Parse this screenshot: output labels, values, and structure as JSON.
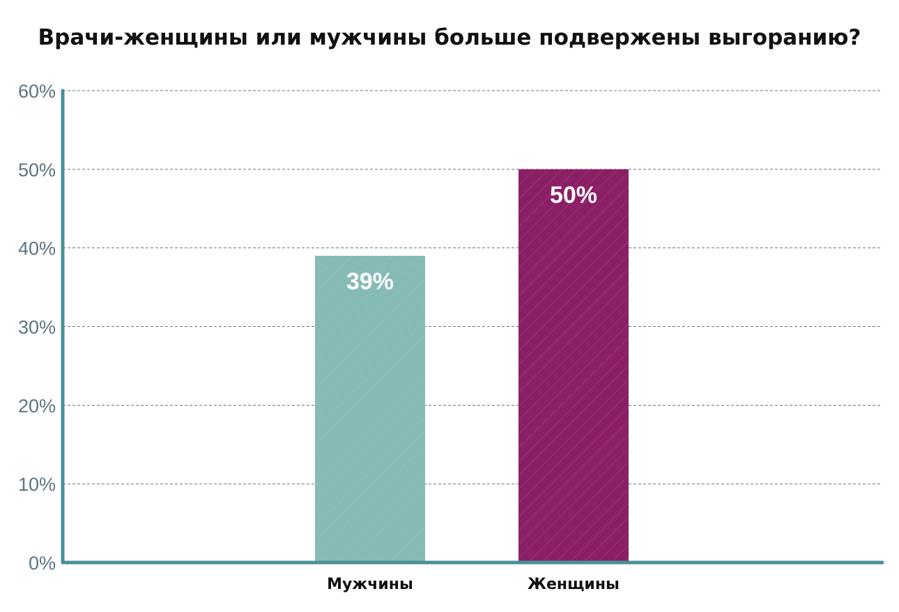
{
  "chart_data": {
    "type": "bar",
    "title": "Врачи-женщины или мужчины больше подвержены выгоранию?",
    "xlabel": "",
    "ylabel": "",
    "categories": [
      "Мужчины",
      "Женщины"
    ],
    "values": [
      39,
      50
    ],
    "data_labels": [
      "39%",
      "50%"
    ],
    "bar_colors": [
      "#86bab5",
      "#8b1f65"
    ],
    "ylim": [
      0,
      60
    ],
    "yticks": [
      0,
      10,
      20,
      30,
      40,
      50,
      60
    ],
    "ytick_labels": [
      "0%",
      "10%",
      "20%",
      "30%",
      "40%",
      "50%",
      "60%"
    ],
    "grid": true,
    "grid_style": "dashed",
    "legend": "none",
    "colors": {
      "axis": "#4a8f99",
      "grid": "#5d7381",
      "tick_text": "#5d7381",
      "title": "#111111"
    }
  }
}
